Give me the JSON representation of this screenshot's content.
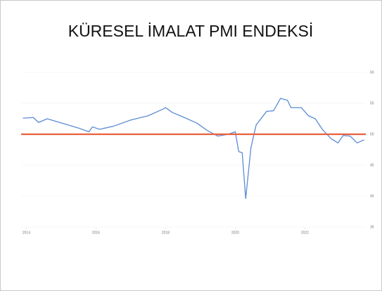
{
  "chart_data": {
    "type": "line",
    "title": "KÜRESEL İMALAT PMI ENDEKSİ",
    "series": [
      {
        "color": "#5b8bd6",
        "x": [
          2013.9,
          2014.2,
          2014.35,
          2014.6,
          2014.9,
          2015.2,
          2015.5,
          2015.6,
          2015.8,
          2015.9,
          2016.1,
          2016.5,
          2017.0,
          2017.5,
          2017.9,
          2018.0,
          2018.2,
          2018.5,
          2018.9,
          2019.2,
          2019.5,
          2019.8,
          2020.0,
          2020.1,
          2020.2,
          2020.3,
          2020.45,
          2020.6,
          2020.9,
          2021.1,
          2021.3,
          2021.5,
          2021.6,
          2021.9,
          2022.1,
          2022.3,
          2022.5,
          2022.75,
          2022.95,
          2023.1,
          2023.3,
          2023.5,
          2023.7
        ],
        "values": [
          52.6,
          52.7,
          51.9,
          52.5,
          52.0,
          51.5,
          51.0,
          50.8,
          50.4,
          51.2,
          50.8,
          51.3,
          52.3,
          53.0,
          54.0,
          54.3,
          53.5,
          52.8,
          51.8,
          50.6,
          49.7,
          50.0,
          50.4,
          47.2,
          47.0,
          39.6,
          47.8,
          51.5,
          53.7,
          53.8,
          55.8,
          55.5,
          54.3,
          54.3,
          53.0,
          52.5,
          50.8,
          49.3,
          48.6,
          49.8,
          49.7,
          48.6,
          49.1
        ]
      }
    ],
    "reference_line": {
      "value": 50,
      "color": "#e8603c"
    },
    "xlim": [
      2013.85,
      2023.75
    ],
    "xticks": [
      2014,
      2016,
      2018,
      2020,
      2022
    ],
    "ylim": [
      35,
      60
    ],
    "yticks": [
      35,
      40,
      45,
      50,
      55,
      60
    ],
    "y_axis_side": "right",
    "grid": true
  }
}
